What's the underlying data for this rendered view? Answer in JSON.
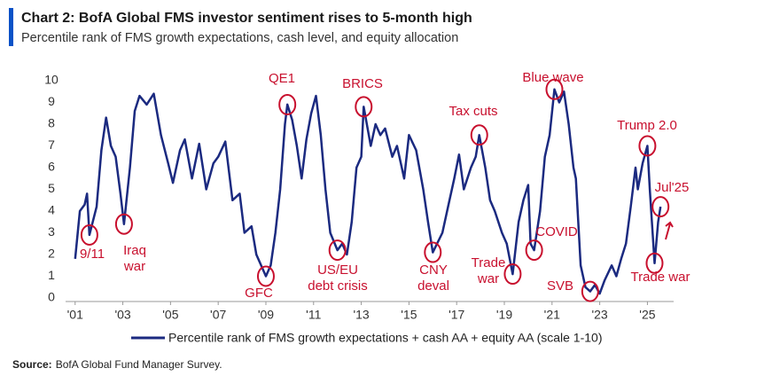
{
  "chart_data": {
    "type": "line",
    "title": "Chart 2: BofA Global FMS investor sentiment rises to 5-month high",
    "subtitle": "Percentile rank of FMS growth expectations, cash level, and equity allocation",
    "source_label": "Source:",
    "source": "BofA Global Fund Manager Survey.",
    "xlim": [
      2000.6,
      2026.1
    ],
    "xticks": [
      {
        "value": 2001,
        "label": "'01"
      },
      {
        "value": 2003,
        "label": "'03"
      },
      {
        "value": 2005,
        "label": "'05"
      },
      {
        "value": 2007,
        "label": "'07"
      },
      {
        "value": 2009,
        "label": "'09"
      },
      {
        "value": 2011,
        "label": "'11"
      },
      {
        "value": 2013,
        "label": "'13"
      },
      {
        "value": 2015,
        "label": "'15"
      },
      {
        "value": 2017,
        "label": "'17"
      },
      {
        "value": 2019,
        "label": "'19"
      },
      {
        "value": 2021,
        "label": "'21"
      },
      {
        "value": 2023,
        "label": "'23"
      },
      {
        "value": 2025,
        "label": "'25"
      }
    ],
    "ylim": [
      0,
      10
    ],
    "yticks": [
      0,
      1,
      2,
      3,
      4,
      5,
      6,
      7,
      8,
      9,
      10
    ],
    "grid": false,
    "legend": "bottom",
    "x": [
      2001.0,
      2001.2,
      2001.4,
      2001.5,
      2001.6,
      2001.9,
      2002.1,
      2002.3,
      2002.5,
      2002.7,
      2002.9,
      2003.05,
      2003.3,
      2003.5,
      2003.7,
      2004.0,
      2004.3,
      2004.6,
      2004.9,
      2005.1,
      2005.4,
      2005.6,
      2005.9,
      2006.2,
      2006.5,
      2006.8,
      2007.0,
      2007.3,
      2007.6,
      2007.9,
      2008.1,
      2008.4,
      2008.6,
      2009.0,
      2009.2,
      2009.4,
      2009.6,
      2009.8,
      2009.9,
      2010.1,
      2010.3,
      2010.5,
      2010.7,
      2010.9,
      2011.1,
      2011.3,
      2011.5,
      2011.7,
      2012.0,
      2012.2,
      2012.4,
      2012.6,
      2012.8,
      2013.0,
      2013.1,
      2013.4,
      2013.6,
      2013.8,
      2014.0,
      2014.3,
      2014.5,
      2014.8,
      2015.0,
      2015.3,
      2015.6,
      2015.8,
      2016.0,
      2016.4,
      2016.7,
      2016.9,
      2017.1,
      2017.3,
      2017.6,
      2017.8,
      2017.95,
      2018.2,
      2018.4,
      2018.6,
      2018.9,
      2019.1,
      2019.35,
      2019.6,
      2019.8,
      2020.0,
      2020.1,
      2020.25,
      2020.5,
      2020.7,
      2020.9,
      2021.1,
      2021.3,
      2021.5,
      2021.7,
      2021.9,
      2022.0,
      2022.2,
      2022.4,
      2022.6,
      2022.8,
      2023.0,
      2023.2,
      2023.5,
      2023.7,
      2023.9,
      2024.1,
      2024.3,
      2024.5,
      2024.6,
      2024.8,
      2025.0,
      2025.1,
      2025.3,
      2025.45,
      2025.55
    ],
    "series": [
      {
        "name": "Percentile rank of FMS growth expectations + cash AA + equity AA (scale 1-10)",
        "color": "#1b2a80",
        "values": [
          1.8,
          4.0,
          4.3,
          4.8,
          2.9,
          4.2,
          6.8,
          8.3,
          7.0,
          6.5,
          4.8,
          3.4,
          6.0,
          8.6,
          9.3,
          8.9,
          9.4,
          7.5,
          6.2,
          5.3,
          6.8,
          7.3,
          5.5,
          7.1,
          5.0,
          6.2,
          6.5,
          7.2,
          4.5,
          4.8,
          3.0,
          3.3,
          2.0,
          1.0,
          1.5,
          3.0,
          5.0,
          8.0,
          8.9,
          8.2,
          7.0,
          5.5,
          7.3,
          8.5,
          9.3,
          7.5,
          5.0,
          3.0,
          2.2,
          2.5,
          2.0,
          3.5,
          6.0,
          6.5,
          8.8,
          7.0,
          8.0,
          7.5,
          7.8,
          6.5,
          7.0,
          5.5,
          7.5,
          6.8,
          5.0,
          3.5,
          2.1,
          3.0,
          4.5,
          5.5,
          6.6,
          5.0,
          6.0,
          6.5,
          7.5,
          6.0,
          4.5,
          4.0,
          3.0,
          2.5,
          1.1,
          3.5,
          4.5,
          5.2,
          2.5,
          2.2,
          4.0,
          6.5,
          7.5,
          9.6,
          9.0,
          9.5,
          8.0,
          6.0,
          5.5,
          1.5,
          0.5,
          0.3,
          0.6,
          0.2,
          0.8,
          1.5,
          1.0,
          1.8,
          2.5,
          4.2,
          6.0,
          5.0,
          6.2,
          7.0,
          5.0,
          1.6,
          3.5,
          4.2
        ]
      }
    ],
    "annotations": [
      {
        "lines": [
          "9/11"
        ],
        "x": 2001.6
      },
      {
        "lines": [
          "Iraq",
          "war"
        ],
        "x": 2003.05
      },
      {
        "lines": [
          "GFC"
        ],
        "x": 2009.0
      },
      {
        "lines": [
          "QE1"
        ],
        "x": 2009.9
      },
      {
        "lines": [
          "US/EU",
          "debt crisis"
        ],
        "x": 2012.0
      },
      {
        "lines": [
          "BRICS"
        ],
        "x": 2013.1
      },
      {
        "lines": [
          "CNY",
          "deval"
        ],
        "x": 2016.0
      },
      {
        "lines": [
          "Tax cuts"
        ],
        "x": 2017.95
      },
      {
        "lines": [
          "Trade",
          "war"
        ],
        "x": 2019.35
      },
      {
        "lines": [
          "COVID"
        ],
        "x": 2020.25
      },
      {
        "lines": [
          "Blue wave"
        ],
        "x": 2021.1
      },
      {
        "lines": [
          "SVB"
        ],
        "x": 2022.6
      },
      {
        "lines": [
          "Trump 2.0"
        ],
        "x": 2025.0
      },
      {
        "lines": [
          "Trade war"
        ],
        "x": 2025.3
      },
      {
        "lines": [
          "Jul'25"
        ],
        "x": 2025.55
      }
    ]
  }
}
